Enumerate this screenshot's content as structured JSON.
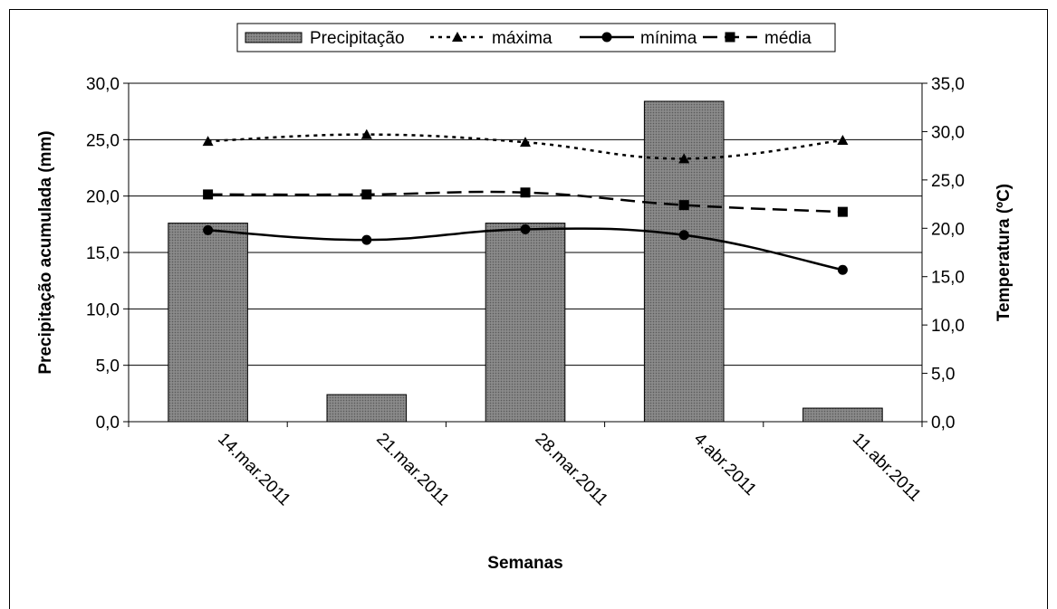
{
  "chart_data": {
    "type": "bar",
    "xlabel": "Semanas",
    "ylabel_left": "Precipitação acumulada (mm)",
    "ylabel_right": "Temperatura (ºC)",
    "categories": [
      "14.mar.2011",
      "21.mar.2011",
      "28.mar.2011",
      "4.abr.2011",
      "11.abr.2011"
    ],
    "ylim_left": [
      0,
      30
    ],
    "ylim_right": [
      0,
      35
    ],
    "yticks_left": [
      "0,0",
      "5,0",
      "10,0",
      "15,0",
      "20,0",
      "25,0",
      "30,0"
    ],
    "yticks_right": [
      "0,0",
      "5,0",
      "10,0",
      "15,0",
      "20,0",
      "25,0",
      "30,0",
      "35,0"
    ],
    "grid": true,
    "legend_position": "top-center",
    "series": [
      {
        "name": "Precipitação",
        "kind": "bar",
        "axis": "left",
        "color": "#808080",
        "values": [
          17.6,
          2.4,
          17.6,
          28.4,
          1.2
        ]
      },
      {
        "name": "máxima",
        "kind": "line",
        "axis": "right",
        "style": "dotted",
        "marker": "triangle",
        "color": "#000000",
        "values": [
          29.0,
          29.7,
          28.9,
          27.2,
          29.1
        ]
      },
      {
        "name": "mínima",
        "kind": "line",
        "axis": "right",
        "style": "solid",
        "marker": "circle",
        "color": "#000000",
        "values": [
          19.8,
          18.8,
          19.9,
          19.3,
          15.7
        ]
      },
      {
        "name": "média",
        "kind": "line",
        "axis": "right",
        "style": "dashed",
        "marker": "square",
        "color": "#000000",
        "values": [
          23.5,
          23.5,
          23.7,
          22.4,
          21.7
        ]
      }
    ]
  }
}
